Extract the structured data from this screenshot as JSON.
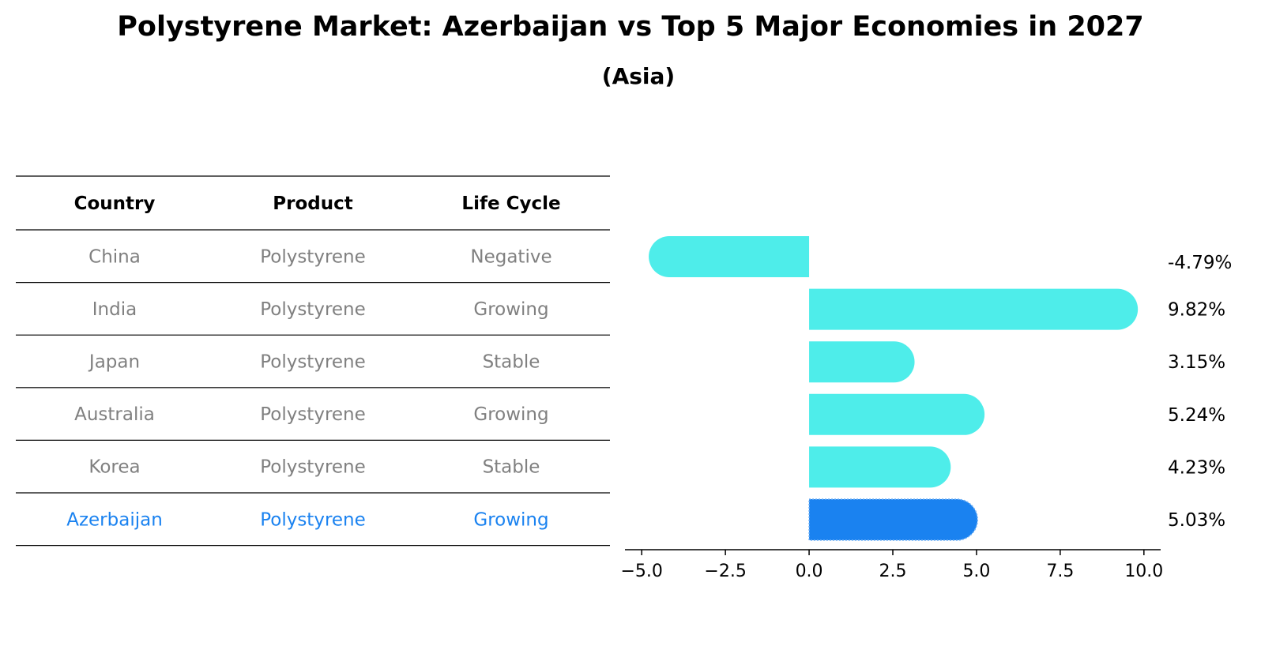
{
  "title": "Polystyrene Market: Azerbaijan vs Top 5 Major Economies in 2027",
  "subtitle": "(Asia)",
  "table": {
    "headers": [
      "Country",
      "Product",
      "Life Cycle"
    ],
    "rows": [
      {
        "country": "China",
        "product": "Polystyrene",
        "life_cycle": "Negative",
        "highlight": false
      },
      {
        "country": "India",
        "product": "Polystyrene",
        "life_cycle": "Growing",
        "highlight": false
      },
      {
        "country": "Japan",
        "product": "Polystyrene",
        "life_cycle": "Stable",
        "highlight": false
      },
      {
        "country": "Australia",
        "product": "Polystyrene",
        "life_cycle": "Growing",
        "highlight": false
      },
      {
        "country": "Korea",
        "product": "Polystyrene",
        "life_cycle": "Stable",
        "highlight": false
      },
      {
        "country": "Azerbaijan",
        "product": "Polystyrene",
        "life_cycle": "Growing",
        "highlight": true
      }
    ]
  },
  "colors": {
    "bar": "#4EEDEA",
    "highlight": "#1A82F0",
    "text_muted": "#808080",
    "text_dark": "#000000"
  },
  "chart_data": {
    "type": "bar",
    "orientation": "horizontal",
    "categories": [
      "China",
      "India",
      "Japan",
      "Australia",
      "Korea",
      "Azerbaijan"
    ],
    "values": [
      -4.79,
      9.82,
      3.15,
      5.24,
      4.23,
      5.03
    ],
    "value_labels": [
      "-4.79%",
      "9.82%",
      "3.15%",
      "5.24%",
      "4.23%",
      "5.03%"
    ],
    "xlim": [
      -5.5,
      10.5
    ],
    "xticks": [
      -5.0,
      -2.5,
      0.0,
      2.5,
      5.0,
      7.5,
      10.0
    ],
    "xtick_labels": [
      "−5.0",
      "−2.5",
      "0.0",
      "2.5",
      "5.0",
      "7.5",
      "10.0"
    ],
    "highlight_category": "Azerbaijan",
    "grid": false,
    "xlabel": "",
    "ylabel": ""
  }
}
